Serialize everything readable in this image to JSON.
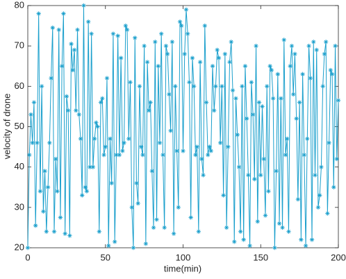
{
  "chart_data": {
    "type": "line",
    "xlabel": "time(min)",
    "ylabel": "velocity of drone",
    "x": [
      0,
      1,
      2,
      3,
      4,
      5,
      6,
      7,
      8,
      9,
      10,
      11,
      12,
      13,
      14,
      15,
      16,
      17,
      18,
      19,
      20,
      21,
      22,
      23,
      24,
      25,
      26,
      27,
      28,
      29,
      30,
      31,
      32,
      33,
      34,
      35,
      36,
      37,
      38,
      39,
      40,
      41,
      42,
      43,
      44,
      45,
      46,
      47,
      48,
      49,
      50,
      51,
      52,
      53,
      54,
      55,
      56,
      57,
      58,
      59,
      60,
      61,
      62,
      63,
      64,
      65,
      66,
      67,
      68,
      69,
      70,
      71,
      72,
      73,
      74,
      75,
      76,
      77,
      78,
      79,
      80,
      81,
      82,
      83,
      84,
      85,
      86,
      87,
      88,
      89,
      90,
      91,
      92,
      93,
      94,
      95,
      96,
      97,
      98,
      99,
      100,
      101,
      102,
      103,
      104,
      105,
      106,
      107,
      108,
      109,
      110,
      111,
      112,
      113,
      114,
      115,
      116,
      117,
      118,
      119,
      120,
      121,
      122,
      123,
      124,
      125,
      126,
      127,
      128,
      129,
      130,
      131,
      132,
      133,
      134,
      135,
      136,
      137,
      138,
      139,
      140,
      141,
      142,
      143,
      144,
      145,
      146,
      147,
      148,
      149,
      150,
      151,
      152,
      153,
      154,
      155,
      156,
      157,
      158,
      159,
      160,
      161,
      162,
      163,
      164,
      165,
      166,
      167,
      168,
      169,
      170,
      171,
      172,
      173,
      174,
      175,
      176,
      177,
      178,
      179,
      180,
      181,
      182,
      183,
      184,
      185,
      186,
      187,
      188,
      189,
      190,
      191,
      192,
      193,
      194,
      195,
      196,
      197,
      198,
      199,
      200
    ],
    "series": [
      {
        "name": "velocity",
        "color": "#1a9fcc",
        "values": [
          20,
          43,
          53,
          46,
          56,
          25.5,
          46,
          78,
          34,
          60,
          29,
          39,
          24,
          35,
          46,
          62,
          74.5,
          24,
          42,
          34,
          74,
          27.5,
          65,
          78,
          23.5,
          57.5,
          54,
          23,
          70.5,
          64,
          69,
          54,
          74,
          53,
          47,
          33,
          80,
          35,
          34,
          76,
          40,
          73,
          40,
          47,
          51,
          50,
          24,
          56,
          57,
          43,
          45,
          62,
          20.5,
          47,
          36,
          73,
          21.5,
          43,
          72.5,
          43,
          67,
          44,
          46,
          75,
          74,
          47,
          61,
          30,
          20,
          72,
          36,
          31,
          60,
          45,
          43,
          70,
          21,
          66,
          54,
          56,
          39,
          25,
          71,
          27,
          65,
          46,
          73,
          43,
          25,
          70,
          68,
          58,
          49,
          71,
          23.5,
          60,
          44,
          30,
          76,
          75,
          44,
          68,
          79,
          73,
          61,
          27.5,
          67,
          60,
          43,
          45,
          24,
          66,
          42,
          38,
          75,
          56,
          43,
          45,
          44,
          65,
          54,
          60,
          69,
          67,
          46,
          60,
          33,
          68,
          25,
          45,
          66,
          71,
          59,
          21.5,
          57,
          48,
          40,
          24,
          60,
          22,
          65,
          52,
          38,
          20.5,
          61,
          53,
          37,
          70,
          26.5,
          56,
          38,
          55,
          42,
          28,
          60,
          34,
          65,
          64,
          57,
          20,
          39,
          63,
          26,
          57,
          25,
          71.5,
          43,
          47,
          24,
          65,
          70,
          58,
          68,
          52,
          32,
          56,
          22,
          63,
          43,
          20.5,
          47,
          70,
          62,
          22,
          71,
          38,
          69,
          30,
          33,
          40,
          60,
          68,
          71,
          28.5,
          46,
          64,
          63,
          35,
          70,
          42,
          56.5
        ]
      }
    ],
    "xlim": [
      0,
      200
    ],
    "xticks": [
      0,
      50,
      100,
      150,
      200
    ],
    "ylim": [
      20,
      80
    ],
    "yticks": [
      20,
      30,
      40,
      50,
      60,
      70,
      80
    ],
    "grid": false
  }
}
